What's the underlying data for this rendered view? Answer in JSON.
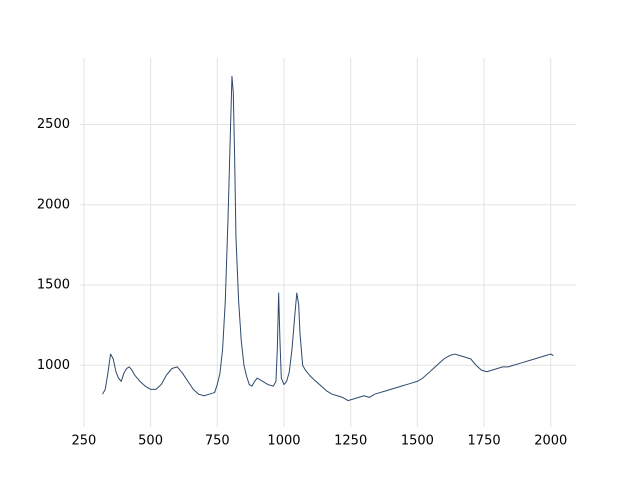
{
  "chart_data": {
    "type": "line",
    "x": [
      320,
      330,
      340,
      350,
      360,
      370,
      380,
      390,
      400,
      410,
      420,
      430,
      440,
      460,
      480,
      500,
      520,
      540,
      560,
      580,
      600,
      620,
      640,
      660,
      680,
      700,
      720,
      740,
      750,
      760,
      770,
      780,
      790,
      800,
      805,
      810,
      815,
      820,
      830,
      840,
      850,
      860,
      870,
      880,
      890,
      900,
      920,
      940,
      960,
      970,
      975,
      980,
      985,
      990,
      1000,
      1010,
      1020,
      1030,
      1040,
      1048,
      1055,
      1060,
      1070,
      1080,
      1100,
      1120,
      1140,
      1160,
      1180,
      1200,
      1220,
      1240,
      1260,
      1280,
      1300,
      1320,
      1340,
      1360,
      1380,
      1400,
      1420,
      1440,
      1460,
      1480,
      1500,
      1520,
      1540,
      1560,
      1580,
      1600,
      1620,
      1640,
      1660,
      1680,
      1700,
      1720,
      1740,
      1760,
      1780,
      1800,
      1820,
      1840,
      1860,
      1880,
      1900,
      1920,
      1940,
      1960,
      1980,
      2000,
      2010
    ],
    "values": [
      820,
      850,
      950,
      1070,
      1040,
      960,
      920,
      900,
      950,
      980,
      990,
      970,
      940,
      900,
      870,
      850,
      850,
      880,
      940,
      980,
      990,
      950,
      900,
      850,
      820,
      810,
      820,
      830,
      880,
      950,
      1100,
      1400,
      1900,
      2500,
      2800,
      2700,
      2300,
      1800,
      1400,
      1150,
      1000,
      930,
      880,
      870,
      900,
      920,
      900,
      880,
      870,
      900,
      1100,
      1450,
      1150,
      920,
      880,
      900,
      960,
      1100,
      1300,
      1450,
      1380,
      1200,
      1000,
      970,
      930,
      900,
      870,
      840,
      820,
      810,
      800,
      780,
      790,
      800,
      810,
      800,
      820,
      830,
      840,
      850,
      860,
      870,
      880,
      890,
      900,
      920,
      950,
      980,
      1010,
      1040,
      1060,
      1070,
      1060,
      1050,
      1040,
      1000,
      970,
      960,
      970,
      980,
      990,
      990,
      1000,
      1010,
      1020,
      1030,
      1040,
      1050,
      1060,
      1070,
      1060
    ],
    "color": "#2e4a6b",
    "xlim": [
      235.5,
      2094.5
    ],
    "ylim": [
      615.5,
      2914.5
    ],
    "xticks": [
      250,
      500,
      750,
      1000,
      1250,
      1500,
      1750,
      2000
    ],
    "yticks": [
      1000,
      1500,
      2000,
      2500
    ],
    "grid": true
  }
}
